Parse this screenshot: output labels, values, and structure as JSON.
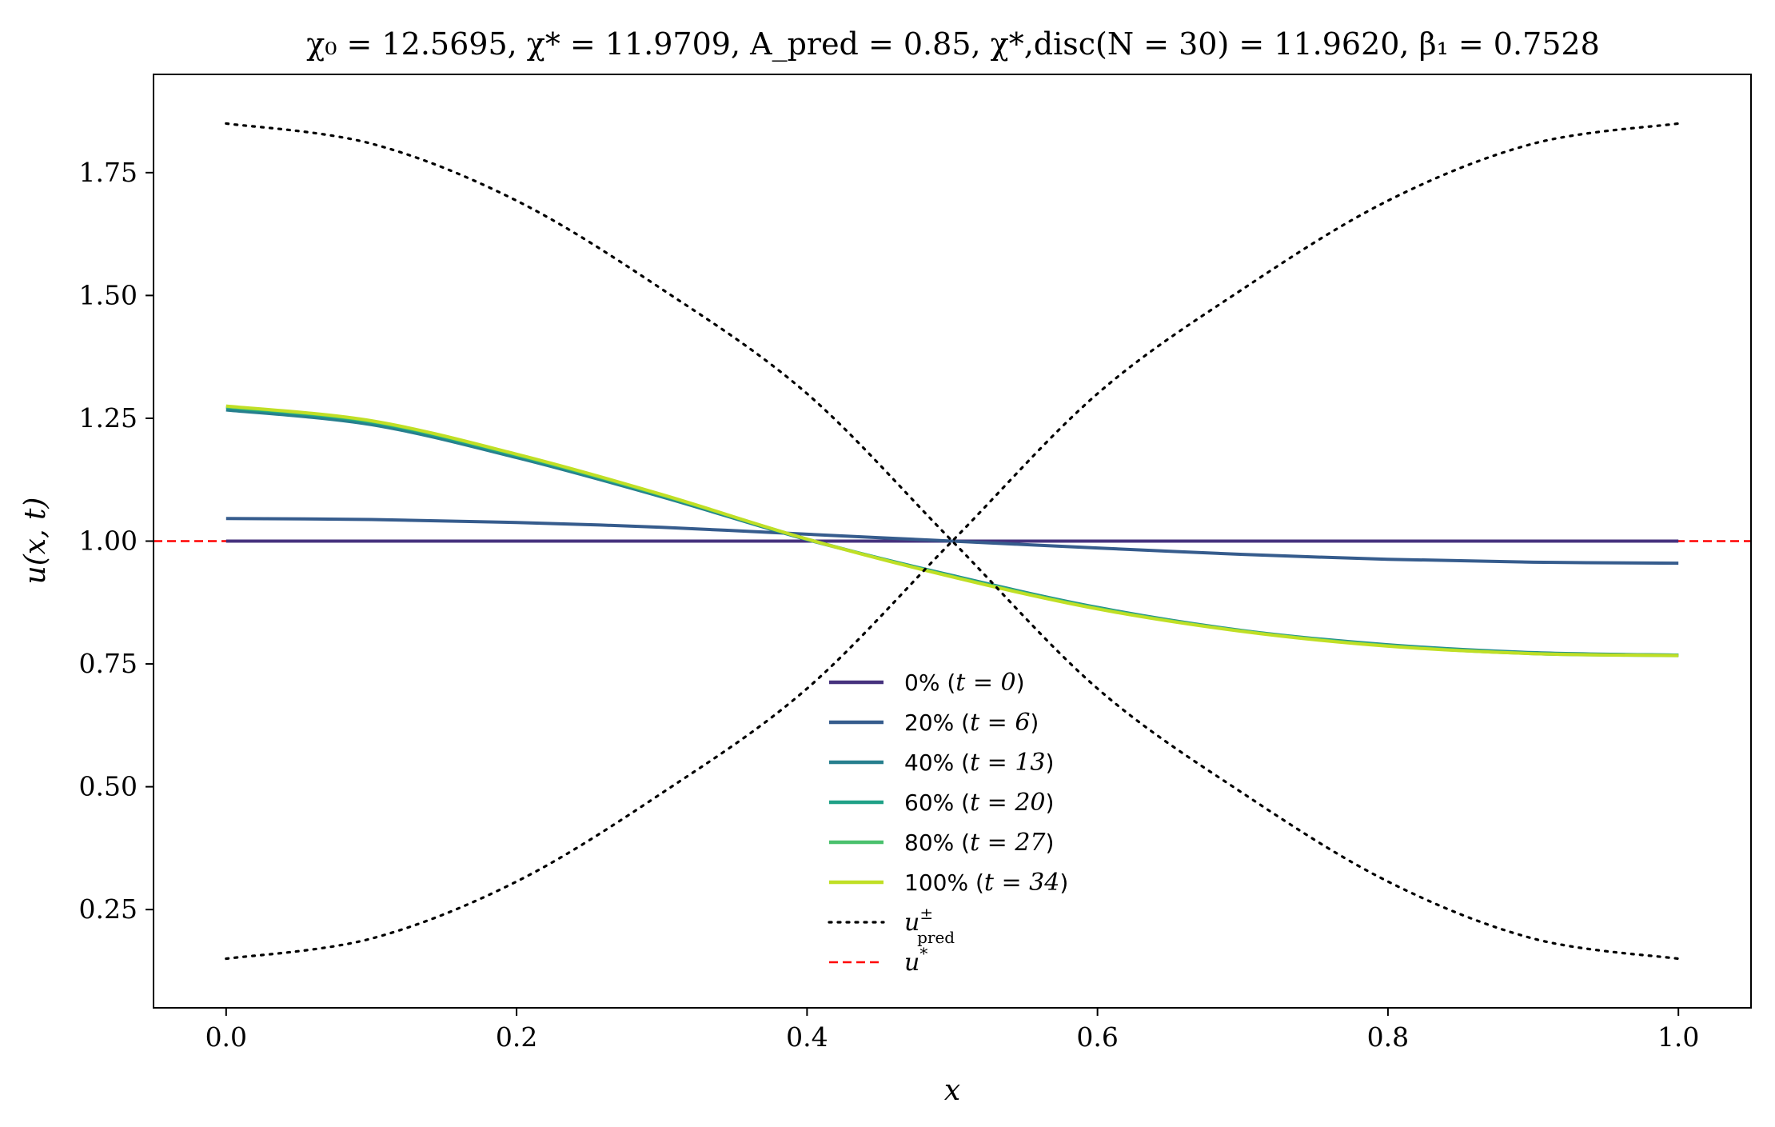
{
  "chart_data": {
    "type": "line",
    "title": "χ₀ = 12.5695,  χ* = 11.9709,  A_pred = 0.85,  χ*,disc(N = 30) = 11.9620,  β₁ = 0.7528",
    "title_parts": {
      "chi0": "χ₀ = 12.5695,",
      "chistar": "χ* = 11.9709,",
      "apred": "A_pred = 0.85,",
      "chidisc": "χ*,disc(N = 30) = 11.9620,",
      "beta1": "β₁ = 0.7528"
    },
    "xlabel": "x",
    "ylabel": "u(x, t)",
    "xlim": [
      -0.05,
      1.05
    ],
    "ylim": [
      0.05,
      1.95
    ],
    "xticks": [
      0.0,
      0.2,
      0.4,
      0.6,
      0.8,
      1.0
    ],
    "xtick_labels": [
      "0.0",
      "0.2",
      "0.4",
      "0.6",
      "0.8",
      "1.0"
    ],
    "yticks": [
      0.25,
      0.5,
      0.75,
      1.0,
      1.25,
      1.5,
      1.75
    ],
    "ytick_labels": [
      "0.25",
      "0.50",
      "0.75",
      "1.00",
      "1.25",
      "1.50",
      "1.75"
    ],
    "grid": false,
    "legend_placement": "lower-center",
    "x": [
      0.0,
      0.1,
      0.2,
      0.3,
      0.4,
      0.5,
      0.6,
      0.7,
      0.8,
      0.9,
      1.0
    ],
    "series": [
      {
        "name": "0% (t = 0)",
        "label": "0% (",
        "t_label": "t = 0",
        "color": "#46327e",
        "style": "solid",
        "values": [
          1.0,
          1.0,
          1.0,
          1.0,
          1.0,
          1.0,
          1.0,
          1.0,
          1.0,
          1.0,
          1.0
        ]
      },
      {
        "name": "20% (t = 6)",
        "label": "20% (",
        "t_label": "t = 6",
        "color": "#365c8d",
        "style": "solid",
        "values": [
          1.046,
          1.044,
          1.038,
          1.028,
          1.014,
          1.0,
          0.986,
          0.973,
          0.963,
          0.957,
          0.955
        ]
      },
      {
        "name": "40% (t = 13)",
        "label": "40% (",
        "t_label": "t = 13",
        "color": "#277f8e",
        "style": "solid",
        "values": [
          1.267,
          1.237,
          1.17,
          1.09,
          1.003,
          0.93,
          0.865,
          0.818,
          0.789,
          0.773,
          0.768
        ]
      },
      {
        "name": "60% (t = 20)",
        "label": "60% (",
        "t_label": "t = 20",
        "color": "#1fa187",
        "style": "solid",
        "values": [
          1.272,
          1.242,
          1.174,
          1.093,
          1.004,
          0.929,
          0.864,
          0.817,
          0.788,
          0.772,
          0.768
        ]
      },
      {
        "name": "80% (t = 27)",
        "label": "80% (",
        "t_label": "t = 27",
        "color": "#4ac16d",
        "style": "solid",
        "values": [
          1.274,
          1.244,
          1.176,
          1.094,
          1.004,
          0.928,
          0.863,
          0.817,
          0.787,
          0.771,
          0.767
        ]
      },
      {
        "name": "100% (t = 34)",
        "label": "100% (",
        "t_label": "t = 34",
        "color": "#c0df25",
        "style": "solid",
        "values": [
          1.275,
          1.245,
          1.177,
          1.095,
          1.004,
          0.927,
          0.862,
          0.816,
          0.786,
          0.771,
          0.767
        ]
      },
      {
        "name": "u±pred (upper branch)",
        "label": "u",
        "sup": "±",
        "sub": "pred",
        "color": "#000000",
        "style": "dotted",
        "legend": true,
        "values": [
          1.85,
          1.809,
          1.693,
          1.513,
          1.3,
          1.0,
          0.7,
          0.487,
          0.307,
          0.191,
          0.15
        ]
      },
      {
        "name": "u±pred (lower branch)",
        "color": "#000000",
        "style": "dotted",
        "legend": false,
        "values": [
          0.15,
          0.191,
          0.307,
          0.487,
          0.7,
          1.0,
          1.3,
          1.513,
          1.693,
          1.809,
          1.85
        ]
      }
    ],
    "hlines": [
      {
        "name": "u*",
        "label": "u",
        "sup": "*",
        "y": 1.0,
        "color": "#ff0000",
        "style": "dashed"
      }
    ]
  }
}
